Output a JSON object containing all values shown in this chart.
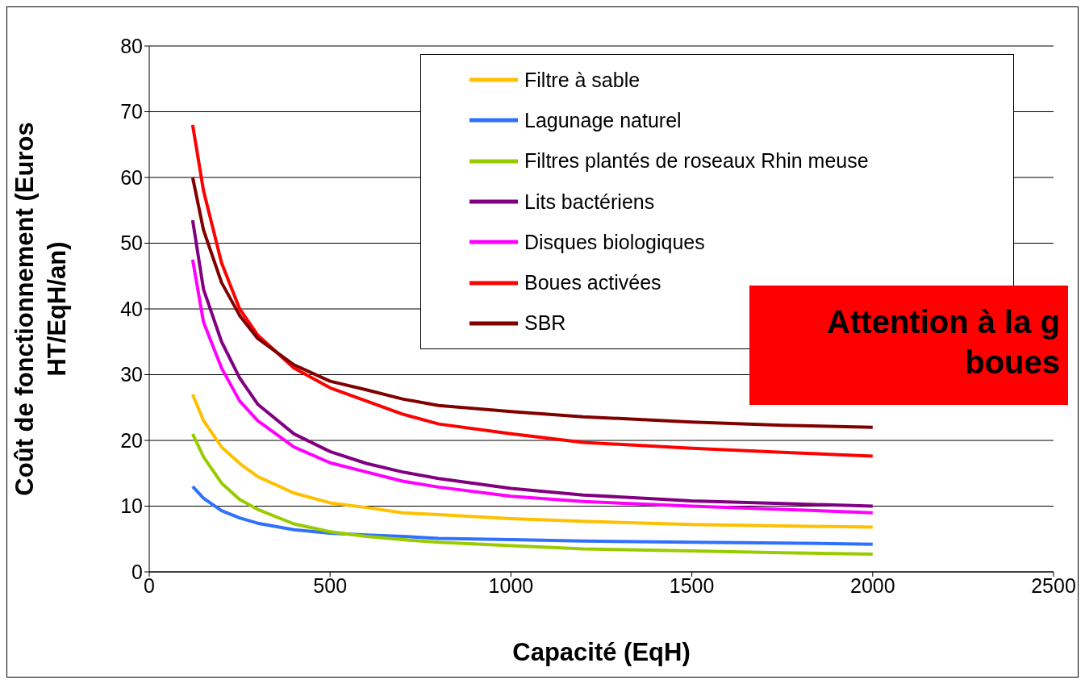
{
  "chart_data": {
    "type": "line",
    "xlabel": "Capacité (EqH)",
    "ylabel": "Coût de fonctionnement (Euros HT/EqH/an)",
    "x": [
      120,
      150,
      200,
      250,
      300,
      400,
      500,
      600,
      700,
      800,
      1000,
      1200,
      1500,
      1750,
      2000
    ],
    "series": [
      {
        "name": "Filtre à sable",
        "color": "#ffc000",
        "values": [
          27,
          23,
          19,
          16.5,
          14.5,
          12,
          10.5,
          9.8,
          9,
          8.7,
          8.1,
          7.7,
          7.2,
          7,
          6.8
        ]
      },
      {
        "name": "Lagunage naturel",
        "color": "#3070ff",
        "values": [
          13,
          11.2,
          9.3,
          8.2,
          7.4,
          6.4,
          5.9,
          5.6,
          5.4,
          5.1,
          4.9,
          4.7,
          4.5,
          4.4,
          4.2
        ]
      },
      {
        "name": "Filtres plantés de roseaux Rhin meuse",
        "color": "#99cc00",
        "values": [
          21,
          17.5,
          13.5,
          11,
          9.5,
          7.3,
          6.1,
          5.4,
          4.9,
          4.5,
          4,
          3.5,
          3.2,
          2.9,
          2.7
        ]
      },
      {
        "name": "Lits bactériens",
        "color": "#800080",
        "values": [
          53.5,
          43,
          35,
          29.5,
          25.5,
          21,
          18.3,
          16.5,
          15.2,
          14.2,
          12.7,
          11.7,
          10.8,
          10.4,
          10
        ]
      },
      {
        "name": "Disques biologiques",
        "color": "#ff00ff",
        "values": [
          47.5,
          38,
          31,
          26,
          23,
          19,
          16.6,
          15.2,
          13.8,
          12.9,
          11.5,
          10.7,
          10,
          9.5,
          9
        ]
      },
      {
        "name": "Boues activées",
        "color": "#ff0000",
        "values": [
          68,
          58,
          47,
          40,
          36,
          31,
          28,
          26,
          24,
          22.5,
          21,
          19.7,
          18.8,
          18.2,
          17.6
        ]
      },
      {
        "name": "SBR",
        "color": "#800000",
        "values": [
          60,
          52,
          44,
          39,
          35.5,
          31.5,
          29,
          27.7,
          26.3,
          25.3,
          24.4,
          23.6,
          22.8,
          22.3,
          22
        ]
      }
    ],
    "xlim": [
      0,
      2500
    ],
    "xticks": [
      0,
      500,
      1000,
      1500,
      2000,
      2500
    ],
    "ylim": [
      0,
      80
    ],
    "yticks": [
      0,
      10,
      20,
      30,
      40,
      50,
      60,
      70,
      80
    ],
    "grid": "y",
    "legend": "top right",
    "marker": "none",
    "line_style": "solid",
    "annotations": [
      "Attention à la g\nboues"
    ]
  }
}
